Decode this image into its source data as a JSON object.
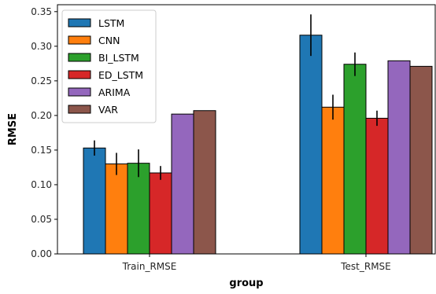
{
  "chart_data": {
    "type": "bar",
    "xlabel": "group",
    "ylabel": "RMSE",
    "categories": [
      "Train_RMSE",
      "Test_RMSE"
    ],
    "ylim": [
      0,
      0.36
    ],
    "yticks": [
      0.0,
      0.05,
      0.1,
      0.15,
      0.2,
      0.25,
      0.3,
      0.35
    ],
    "legend_position": "top-left",
    "grid": false,
    "series": [
      {
        "name": "LSTM",
        "color": "#1f77b4",
        "values": [
          0.153,
          0.316
        ],
        "errors": [
          0.011,
          0.03
        ]
      },
      {
        "name": "CNN",
        "color": "#ff7f0e",
        "values": [
          0.13,
          0.212
        ],
        "errors": [
          0.016,
          0.018
        ]
      },
      {
        "name": "BI_LSTM",
        "color": "#2ca02c",
        "values": [
          0.131,
          0.274
        ],
        "errors": [
          0.02,
          0.017
        ]
      },
      {
        "name": "ED_LSTM",
        "color": "#d62728",
        "values": [
          0.117,
          0.196
        ],
        "errors": [
          0.01,
          0.011
        ]
      },
      {
        "name": "ARIMA",
        "color": "#9467bd",
        "values": [
          0.202,
          0.279
        ],
        "errors": [
          null,
          null
        ]
      },
      {
        "name": "VAR",
        "color": "#8c564b",
        "values": [
          0.207,
          0.271
        ],
        "errors": [
          null,
          null
        ]
      }
    ]
  }
}
